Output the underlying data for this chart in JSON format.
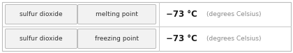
{
  "rows": [
    {
      "badge1": "sulfur dioxide",
      "badge2": "melting point",
      "value_bold": "−73 °C",
      "value_light": "(degrees Celsius)"
    },
    {
      "badge1": "sulfur dioxide",
      "badge2": "freezing point",
      "value_bold": "−73 °C",
      "value_light": "(degrees Celsius)"
    }
  ],
  "background_color": "#ffffff",
  "badge_bg_color": "#f2f2f2",
  "badge_edge_color": "#bbbbbb",
  "divider_color": "#cccccc",
  "outer_border_color": "#bbbbbb",
  "text_color": "#333333",
  "value_color": "#1a1a1a",
  "light_text_color": "#888888",
  "fig_width": 4.2,
  "fig_height": 0.76,
  "dpi": 100
}
